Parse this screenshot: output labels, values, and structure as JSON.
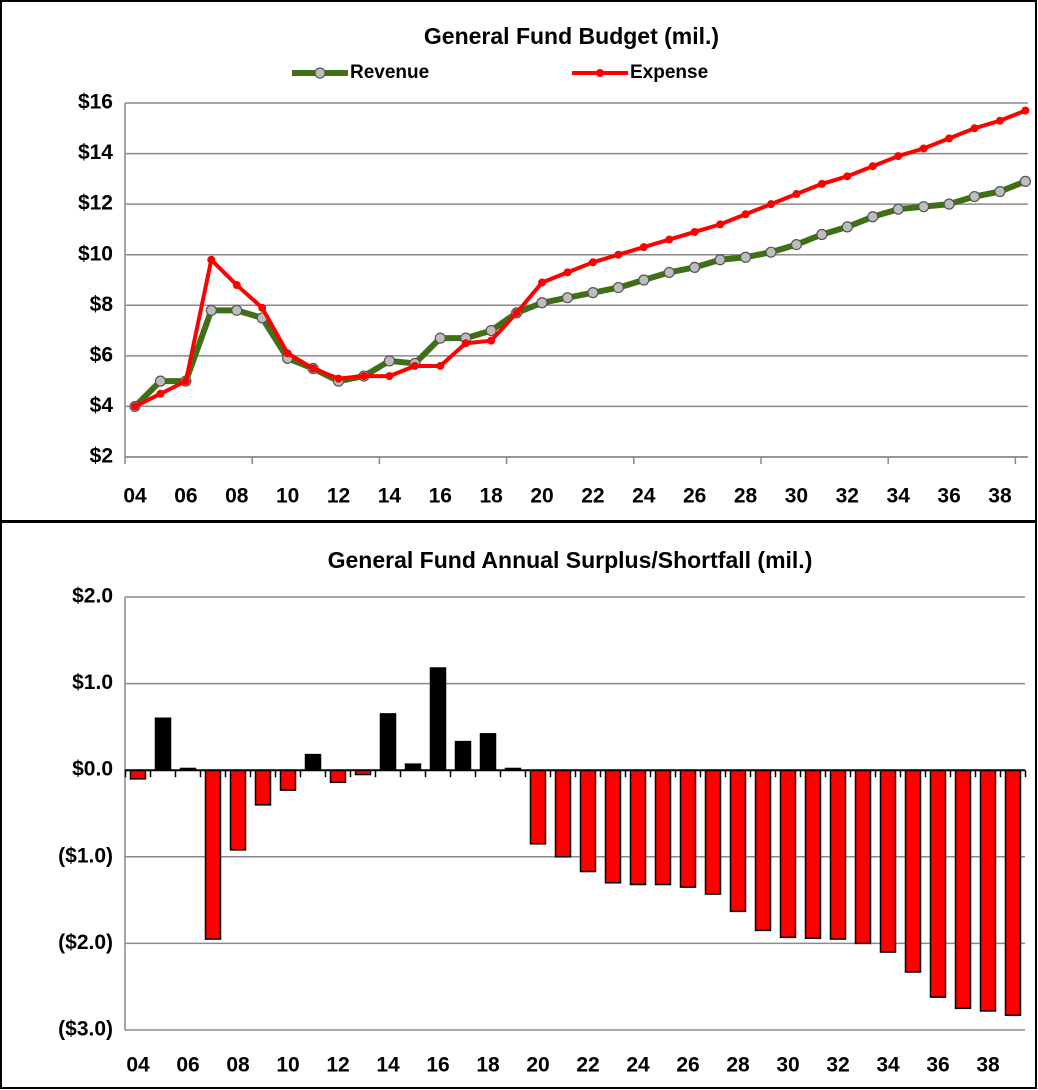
{
  "chart_data": [
    {
      "type": "line",
      "title": "General Fund Budget (mil.)",
      "categories": [
        "04",
        null,
        "06",
        null,
        "08",
        null,
        "10",
        null,
        "12",
        null,
        "14",
        null,
        "16",
        null,
        "18",
        null,
        "20",
        null,
        "22",
        null,
        "24",
        null,
        "26",
        null,
        "28",
        null,
        "30",
        null,
        "32",
        null,
        "34",
        null,
        "36",
        null,
        "38",
        null
      ],
      "series": [
        {
          "name": "Revenue",
          "color": "#3f7015",
          "values": [
            4.0,
            5.0,
            5.0,
            7.8,
            7.8,
            7.5,
            5.9,
            5.5,
            5.0,
            5.2,
            5.8,
            5.7,
            6.7,
            6.7,
            7.0,
            7.7,
            8.1,
            8.3,
            8.5,
            8.7,
            9.0,
            9.3,
            9.5,
            9.8,
            9.9,
            10.1,
            10.4,
            10.8,
            11.1,
            11.5,
            11.8,
            11.9,
            12.0,
            12.3,
            12.5,
            12.9
          ]
        },
        {
          "name": "Expense",
          "color": "#ff0000",
          "values": [
            4.0,
            4.5,
            5.0,
            9.8,
            8.8,
            7.9,
            6.1,
            5.5,
            5.1,
            5.2,
            5.2,
            5.6,
            5.6,
            6.5,
            6.6,
            7.7,
            8.9,
            9.3,
            9.7,
            10.0,
            10.3,
            10.6,
            10.9,
            11.2,
            11.6,
            12.0,
            12.4,
            12.8,
            13.1,
            13.5,
            13.9,
            14.2,
            14.6,
            15.0,
            15.3,
            15.7
          ]
        }
      ],
      "ylim": [
        2,
        16
      ],
      "yticks": [
        {
          "value": 2,
          "label": "$2"
        },
        {
          "value": 4,
          "label": "$4"
        },
        {
          "value": 6,
          "label": "$6"
        },
        {
          "value": 8,
          "label": "$8"
        },
        {
          "value": 10,
          "label": "$10"
        },
        {
          "value": 12,
          "label": "$12"
        },
        {
          "value": 14,
          "label": "$14"
        },
        {
          "value": 16,
          "label": "$16"
        }
      ],
      "grid": true,
      "legend": "top"
    },
    {
      "type": "bar",
      "title": "General Fund Annual Surplus/Shortfall (mil.)",
      "categories": [
        "04",
        null,
        "06",
        null,
        "08",
        null,
        "10",
        null,
        "12",
        null,
        "14",
        null,
        "16",
        null,
        "18",
        null,
        "20",
        null,
        "22",
        null,
        "24",
        null,
        "26",
        null,
        "28",
        null,
        "30",
        null,
        "32",
        null,
        "34",
        null,
        "36",
        null,
        "38",
        null
      ],
      "values": [
        -0.1,
        0.6,
        0.02,
        -1.95,
        -0.92,
        -0.4,
        -0.23,
        0.18,
        -0.14,
        -0.05,
        0.65,
        0.07,
        1.18,
        0.33,
        0.42,
        0.02,
        -0.85,
        -1.0,
        -1.17,
        -1.3,
        -1.32,
        -1.32,
        -1.35,
        -1.43,
        -1.63,
        -1.85,
        -1.93,
        -1.94,
        -1.95,
        -2.0,
        -2.1,
        -2.33,
        -2.62,
        -2.75,
        -2.78,
        -2.83
      ],
      "color": "#000000",
      "negative_color": "#ff0000",
      "ylim": [
        -3,
        2
      ],
      "yticks": [
        {
          "value": -3,
          "label": "($3.0)"
        },
        {
          "value": -2,
          "label": "($2.0)"
        },
        {
          "value": -1,
          "label": "($1.0)"
        },
        {
          "value": 0,
          "label": "$0.0"
        },
        {
          "value": 1,
          "label": "$1.0"
        },
        {
          "value": 2,
          "label": "$2.0"
        }
      ],
      "grid": true
    }
  ]
}
